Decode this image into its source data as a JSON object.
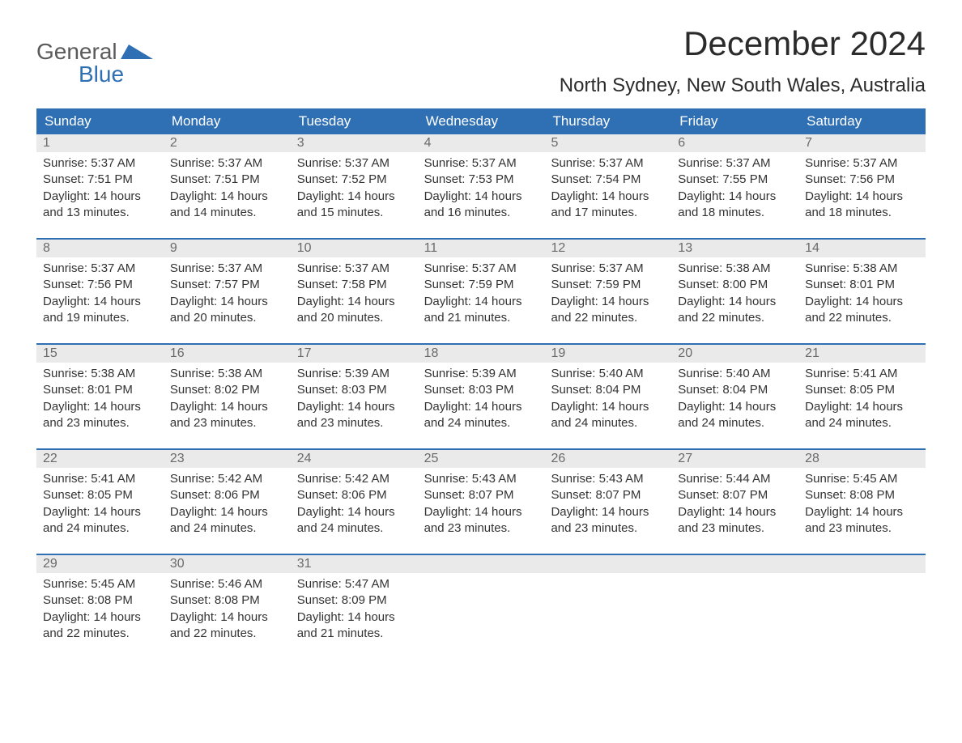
{
  "logo": {
    "word1": "General",
    "word2": "Blue"
  },
  "title": "December 2024",
  "location": "North Sydney, New South Wales, Australia",
  "colors": {
    "header_bg": "#2f6fb3",
    "header_text": "#ffffff",
    "daynum_bg": "#eaeaea",
    "daynum_text": "#6a6a6a",
    "body_text": "#333333",
    "week_border": "#2f6fb3",
    "logo_gray": "#5a5a5a",
    "logo_blue": "#2f6fb3",
    "page_bg": "#ffffff"
  },
  "day_names": [
    "Sunday",
    "Monday",
    "Tuesday",
    "Wednesday",
    "Thursday",
    "Friday",
    "Saturday"
  ],
  "weeks": [
    [
      {
        "n": "1",
        "sunrise": "Sunrise: 5:37 AM",
        "sunset": "Sunset: 7:51 PM",
        "d1": "Daylight: 14 hours",
        "d2": "and 13 minutes."
      },
      {
        "n": "2",
        "sunrise": "Sunrise: 5:37 AM",
        "sunset": "Sunset: 7:51 PM",
        "d1": "Daylight: 14 hours",
        "d2": "and 14 minutes."
      },
      {
        "n": "3",
        "sunrise": "Sunrise: 5:37 AM",
        "sunset": "Sunset: 7:52 PM",
        "d1": "Daylight: 14 hours",
        "d2": "and 15 minutes."
      },
      {
        "n": "4",
        "sunrise": "Sunrise: 5:37 AM",
        "sunset": "Sunset: 7:53 PM",
        "d1": "Daylight: 14 hours",
        "d2": "and 16 minutes."
      },
      {
        "n": "5",
        "sunrise": "Sunrise: 5:37 AM",
        "sunset": "Sunset: 7:54 PM",
        "d1": "Daylight: 14 hours",
        "d2": "and 17 minutes."
      },
      {
        "n": "6",
        "sunrise": "Sunrise: 5:37 AM",
        "sunset": "Sunset: 7:55 PM",
        "d1": "Daylight: 14 hours",
        "d2": "and 18 minutes."
      },
      {
        "n": "7",
        "sunrise": "Sunrise: 5:37 AM",
        "sunset": "Sunset: 7:56 PM",
        "d1": "Daylight: 14 hours",
        "d2": "and 18 minutes."
      }
    ],
    [
      {
        "n": "8",
        "sunrise": "Sunrise: 5:37 AM",
        "sunset": "Sunset: 7:56 PM",
        "d1": "Daylight: 14 hours",
        "d2": "and 19 minutes."
      },
      {
        "n": "9",
        "sunrise": "Sunrise: 5:37 AM",
        "sunset": "Sunset: 7:57 PM",
        "d1": "Daylight: 14 hours",
        "d2": "and 20 minutes."
      },
      {
        "n": "10",
        "sunrise": "Sunrise: 5:37 AM",
        "sunset": "Sunset: 7:58 PM",
        "d1": "Daylight: 14 hours",
        "d2": "and 20 minutes."
      },
      {
        "n": "11",
        "sunrise": "Sunrise: 5:37 AM",
        "sunset": "Sunset: 7:59 PM",
        "d1": "Daylight: 14 hours",
        "d2": "and 21 minutes."
      },
      {
        "n": "12",
        "sunrise": "Sunrise: 5:37 AM",
        "sunset": "Sunset: 7:59 PM",
        "d1": "Daylight: 14 hours",
        "d2": "and 22 minutes."
      },
      {
        "n": "13",
        "sunrise": "Sunrise: 5:38 AM",
        "sunset": "Sunset: 8:00 PM",
        "d1": "Daylight: 14 hours",
        "d2": "and 22 minutes."
      },
      {
        "n": "14",
        "sunrise": "Sunrise: 5:38 AM",
        "sunset": "Sunset: 8:01 PM",
        "d1": "Daylight: 14 hours",
        "d2": "and 22 minutes."
      }
    ],
    [
      {
        "n": "15",
        "sunrise": "Sunrise: 5:38 AM",
        "sunset": "Sunset: 8:01 PM",
        "d1": "Daylight: 14 hours",
        "d2": "and 23 minutes."
      },
      {
        "n": "16",
        "sunrise": "Sunrise: 5:38 AM",
        "sunset": "Sunset: 8:02 PM",
        "d1": "Daylight: 14 hours",
        "d2": "and 23 minutes."
      },
      {
        "n": "17",
        "sunrise": "Sunrise: 5:39 AM",
        "sunset": "Sunset: 8:03 PM",
        "d1": "Daylight: 14 hours",
        "d2": "and 23 minutes."
      },
      {
        "n": "18",
        "sunrise": "Sunrise: 5:39 AM",
        "sunset": "Sunset: 8:03 PM",
        "d1": "Daylight: 14 hours",
        "d2": "and 24 minutes."
      },
      {
        "n": "19",
        "sunrise": "Sunrise: 5:40 AM",
        "sunset": "Sunset: 8:04 PM",
        "d1": "Daylight: 14 hours",
        "d2": "and 24 minutes."
      },
      {
        "n": "20",
        "sunrise": "Sunrise: 5:40 AM",
        "sunset": "Sunset: 8:04 PM",
        "d1": "Daylight: 14 hours",
        "d2": "and 24 minutes."
      },
      {
        "n": "21",
        "sunrise": "Sunrise: 5:41 AM",
        "sunset": "Sunset: 8:05 PM",
        "d1": "Daylight: 14 hours",
        "d2": "and 24 minutes."
      }
    ],
    [
      {
        "n": "22",
        "sunrise": "Sunrise: 5:41 AM",
        "sunset": "Sunset: 8:05 PM",
        "d1": "Daylight: 14 hours",
        "d2": "and 24 minutes."
      },
      {
        "n": "23",
        "sunrise": "Sunrise: 5:42 AM",
        "sunset": "Sunset: 8:06 PM",
        "d1": "Daylight: 14 hours",
        "d2": "and 24 minutes."
      },
      {
        "n": "24",
        "sunrise": "Sunrise: 5:42 AM",
        "sunset": "Sunset: 8:06 PM",
        "d1": "Daylight: 14 hours",
        "d2": "and 24 minutes."
      },
      {
        "n": "25",
        "sunrise": "Sunrise: 5:43 AM",
        "sunset": "Sunset: 8:07 PM",
        "d1": "Daylight: 14 hours",
        "d2": "and 23 minutes."
      },
      {
        "n": "26",
        "sunrise": "Sunrise: 5:43 AM",
        "sunset": "Sunset: 8:07 PM",
        "d1": "Daylight: 14 hours",
        "d2": "and 23 minutes."
      },
      {
        "n": "27",
        "sunrise": "Sunrise: 5:44 AM",
        "sunset": "Sunset: 8:07 PM",
        "d1": "Daylight: 14 hours",
        "d2": "and 23 minutes."
      },
      {
        "n": "28",
        "sunrise": "Sunrise: 5:45 AM",
        "sunset": "Sunset: 8:08 PM",
        "d1": "Daylight: 14 hours",
        "d2": "and 23 minutes."
      }
    ],
    [
      {
        "n": "29",
        "sunrise": "Sunrise: 5:45 AM",
        "sunset": "Sunset: 8:08 PM",
        "d1": "Daylight: 14 hours",
        "d2": "and 22 minutes."
      },
      {
        "n": "30",
        "sunrise": "Sunrise: 5:46 AM",
        "sunset": "Sunset: 8:08 PM",
        "d1": "Daylight: 14 hours",
        "d2": "and 22 minutes."
      },
      {
        "n": "31",
        "sunrise": "Sunrise: 5:47 AM",
        "sunset": "Sunset: 8:09 PM",
        "d1": "Daylight: 14 hours",
        "d2": "and 21 minutes."
      },
      {
        "empty": true
      },
      {
        "empty": true
      },
      {
        "empty": true
      },
      {
        "empty": true
      }
    ]
  ]
}
